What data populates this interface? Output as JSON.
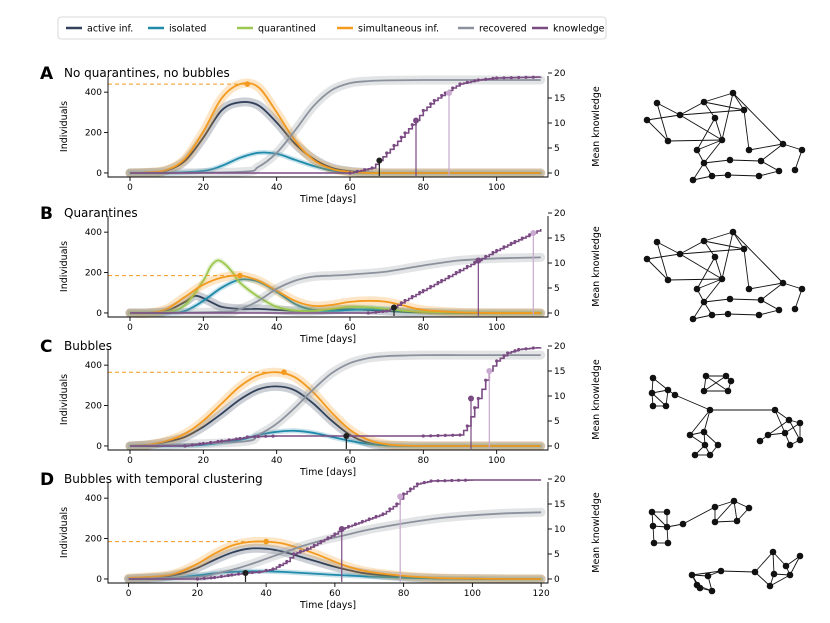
{
  "legend": [
    {
      "key": "active",
      "label": "active inf.",
      "color": "#33425a"
    },
    {
      "key": "isolated",
      "label": "isolated",
      "color": "#1f8aaa"
    },
    {
      "key": "quarantined",
      "label": "quarantined",
      "color": "#9cc751"
    },
    {
      "key": "simultaneous",
      "label": "simultaneous inf.",
      "color": "#f39a1f"
    },
    {
      "key": "recovered",
      "label": "recovered",
      "color": "#8c929d"
    },
    {
      "key": "knowledge",
      "label": "knowledge",
      "color": "#7a4a82"
    }
  ],
  "chart_data": [
    {
      "panel": "A",
      "type": "line",
      "title": "No quarantines, no bubbles",
      "xlabel": "Time [days]",
      "ylabel": "Individuals",
      "y2label": "Mean knowledge",
      "xlim": [
        -6,
        114
      ],
      "ylim": [
        -20,
        480
      ],
      "y2lim": [
        -0.8,
        19.4
      ],
      "xticks": [
        0,
        20,
        40,
        60,
        80,
        100
      ],
      "yticks": [
        0,
        200,
        400
      ],
      "y2ticks": [
        0,
        5,
        10,
        15,
        20
      ],
      "peak": {
        "x": 32,
        "y": 440
      },
      "series": [
        {
          "key": "active",
          "x": [
            0,
            5,
            10,
            15,
            20,
            25,
            30,
            35,
            40,
            45,
            50,
            55,
            60,
            65,
            70,
            80,
            90,
            100,
            112
          ],
          "y": [
            0,
            2,
            12,
            60,
            175,
            310,
            350,
            335,
            250,
            145,
            70,
            25,
            8,
            2,
            0,
            0,
            0,
            0,
            0
          ]
        },
        {
          "key": "isolated",
          "x": [
            0,
            10,
            20,
            25,
            30,
            35,
            40,
            45,
            50,
            55,
            60,
            65,
            70,
            80,
            100,
            112
          ],
          "y": [
            0,
            0,
            10,
            35,
            75,
            100,
            95,
            65,
            35,
            12,
            3,
            0,
            0,
            0,
            0,
            0
          ]
        },
        {
          "key": "simultaneous",
          "x": [
            0,
            5,
            10,
            15,
            20,
            25,
            30,
            35,
            40,
            45,
            50,
            55,
            60,
            65,
            70,
            80,
            112
          ],
          "y": [
            0,
            3,
            15,
            70,
            205,
            370,
            440,
            425,
            300,
            160,
            65,
            20,
            5,
            0,
            0,
            0,
            0
          ]
        },
        {
          "key": "recovered",
          "x": [
            0,
            30,
            35,
            40,
            45,
            50,
            55,
            60,
            65,
            70,
            80,
            90,
            100,
            112
          ],
          "y": [
            0,
            5,
            30,
            100,
            210,
            330,
            410,
            445,
            455,
            458,
            460,
            460,
            460,
            460
          ]
        },
        {
          "key": "knowledge",
          "x": [
            0,
            60,
            66,
            68,
            70,
            72,
            75,
            78,
            80,
            83,
            86,
            88,
            90,
            95,
            100,
            112
          ],
          "y": [
            0,
            0,
            1,
            2.5,
            4,
            5.5,
            8,
            10.5,
            12.5,
            14.5,
            16,
            17,
            17.8,
            18.6,
            19,
            19.2
          ]
        }
      ],
      "markers": [
        {
          "x": 68,
          "k": 2.5
        },
        {
          "x": 78,
          "k": 10.5
        },
        {
          "x": 87,
          "k": 16
        }
      ]
    },
    {
      "panel": "B",
      "type": "line",
      "title": "Quarantines",
      "xlabel": "Time [days]",
      "ylabel": "Individuals",
      "y2label": "Mean knowledge",
      "xlim": [
        -6,
        114
      ],
      "ylim": [
        -20,
        480
      ],
      "y2lim": [
        -0.8,
        19.4
      ],
      "xticks": [
        0,
        20,
        40,
        60,
        80,
        100
      ],
      "yticks": [
        0,
        200,
        400
      ],
      "y2ticks": [
        0,
        5,
        10,
        15,
        20
      ],
      "peak": {
        "x": 30,
        "y": 185
      },
      "series": [
        {
          "key": "active",
          "x": [
            0,
            5,
            10,
            15,
            18,
            22,
            25,
            30,
            35,
            40,
            45,
            50,
            55,
            60,
            65,
            70,
            75,
            80,
            90,
            100,
            112
          ],
          "y": [
            0,
            0,
            10,
            55,
            85,
            55,
            30,
            20,
            20,
            15,
            10,
            10,
            15,
            18,
            15,
            10,
            5,
            3,
            0,
            0,
            0
          ]
        },
        {
          "key": "isolated",
          "x": [
            0,
            10,
            15,
            20,
            25,
            30,
            35,
            40,
            45,
            50,
            55,
            60,
            65,
            70,
            75,
            80,
            90,
            100,
            112
          ],
          "y": [
            0,
            0,
            10,
            60,
            125,
            165,
            155,
            105,
            45,
            15,
            10,
            15,
            18,
            15,
            10,
            5,
            1,
            0,
            0
          ]
        },
        {
          "key": "quarantined",
          "x": [
            0,
            10,
            15,
            20,
            22,
            24,
            26,
            28,
            30,
            35,
            40,
            45,
            50,
            55,
            60,
            65,
            70,
            75,
            80,
            90,
            100,
            112
          ],
          "y": [
            0,
            5,
            40,
            160,
            230,
            260,
            240,
            200,
            150,
            80,
            30,
            12,
            10,
            20,
            30,
            28,
            20,
            10,
            5,
            2,
            0,
            0
          ]
        },
        {
          "key": "simultaneous",
          "x": [
            0,
            5,
            10,
            15,
            20,
            25,
            30,
            35,
            40,
            45,
            50,
            55,
            60,
            65,
            70,
            75,
            80,
            90,
            100,
            112
          ],
          "y": [
            0,
            0,
            20,
            80,
            140,
            175,
            185,
            160,
            110,
            60,
            35,
            40,
            55,
            60,
            55,
            35,
            15,
            3,
            0,
            0
          ]
        },
        {
          "key": "recovered",
          "x": [
            0,
            25,
            30,
            35,
            40,
            45,
            50,
            55,
            60,
            70,
            80,
            90,
            100,
            112
          ],
          "y": [
            0,
            5,
            20,
            60,
            120,
            160,
            180,
            185,
            190,
            205,
            235,
            260,
            270,
            275
          ]
        },
        {
          "key": "knowledge",
          "x": [
            0,
            65,
            70,
            72,
            75,
            80,
            85,
            90,
            95,
            100,
            105,
            110,
            112
          ],
          "y": [
            0,
            0,
            0.4,
            1.1,
            2.5,
            4.5,
            6.5,
            8.5,
            10.5,
            12.5,
            14.3,
            16,
            16.8
          ]
        }
      ],
      "markers": [
        {
          "x": 72,
          "k": 1.1
        },
        {
          "x": 95,
          "k": 10.5
        },
        {
          "x": 110,
          "k": 16
        }
      ]
    },
    {
      "panel": "C",
      "type": "line",
      "title": "Bubbles",
      "xlabel": "Time [days]",
      "ylabel": "Individuals",
      "y2label": "Mean knowledge",
      "xlim": [
        -6,
        114
      ],
      "ylim": [
        -20,
        480
      ],
      "y2lim": [
        -0.8,
        19.4
      ],
      "xticks": [
        0,
        20,
        40,
        60,
        80,
        100
      ],
      "yticks": [
        0,
        200,
        400
      ],
      "y2ticks": [
        0,
        5,
        10,
        15,
        20
      ],
      "peak": {
        "x": 42,
        "y": 365
      },
      "series": [
        {
          "key": "active",
          "x": [
            0,
            5,
            10,
            15,
            20,
            25,
            30,
            35,
            40,
            45,
            50,
            55,
            60,
            65,
            70,
            80,
            90,
            112
          ],
          "y": [
            0,
            5,
            20,
            45,
            95,
            160,
            230,
            280,
            295,
            275,
            210,
            125,
            55,
            15,
            3,
            0,
            0,
            0
          ]
        },
        {
          "key": "isolated",
          "x": [
            0,
            10,
            20,
            30,
            35,
            40,
            45,
            50,
            55,
            60,
            65,
            70,
            80,
            112
          ],
          "y": [
            0,
            0,
            5,
            30,
            55,
            70,
            75,
            65,
            45,
            25,
            10,
            3,
            0,
            0
          ]
        },
        {
          "key": "simultaneous",
          "x": [
            0,
            5,
            10,
            15,
            20,
            25,
            30,
            35,
            40,
            45,
            50,
            55,
            60,
            65,
            70,
            75,
            80,
            90,
            112
          ],
          "y": [
            0,
            6,
            25,
            60,
            125,
            210,
            295,
            350,
            365,
            340,
            265,
            165,
            80,
            30,
            8,
            2,
            0,
            0,
            0
          ]
        },
        {
          "key": "recovered",
          "x": [
            0,
            30,
            35,
            40,
            45,
            50,
            55,
            60,
            65,
            70,
            75,
            80,
            90,
            100,
            112
          ],
          "y": [
            0,
            20,
            55,
            110,
            190,
            280,
            360,
            410,
            435,
            445,
            448,
            450,
            450,
            450,
            450
          ]
        },
        {
          "key": "knowledge",
          "x": [
            0,
            10,
            15,
            20,
            25,
            30,
            32,
            35,
            40,
            45,
            50,
            55,
            60,
            70,
            80,
            90,
            92,
            95,
            98,
            100,
            103,
            106,
            110,
            112
          ],
          "y": [
            0,
            0,
            0,
            0.5,
            1,
            1.5,
            1.8,
            1.9,
            2,
            2,
            2,
            2,
            2,
            2,
            2,
            2.2,
            4,
            9.5,
            15,
            17,
            18.6,
            19.3,
            19.6,
            19.7
          ]
        }
      ],
      "markers": [
        {
          "x": 59,
          "k": 2
        },
        {
          "x": 93,
          "k": 9.5
        },
        {
          "x": 98,
          "k": 15
        }
      ]
    },
    {
      "panel": "D",
      "type": "line",
      "title": "Bubbles with temporal clustering",
      "xlabel": "Time [days]",
      "ylabel": "Individuals",
      "y2label": "Mean knowledge",
      "xlim": [
        -6,
        122
      ],
      "ylim": [
        -20,
        480
      ],
      "y2lim": [
        -0.8,
        19.4
      ],
      "xticks": [
        0,
        20,
        40,
        60,
        80,
        100,
        120
      ],
      "yticks": [
        0,
        200,
        400
      ],
      "y2ticks": [
        0,
        5,
        10,
        15,
        20
      ],
      "peak": {
        "x": 40,
        "y": 185
      },
      "series": [
        {
          "key": "active",
          "x": [
            0,
            10,
            15,
            20,
            25,
            30,
            35,
            40,
            45,
            50,
            55,
            60,
            65,
            70,
            80,
            90,
            100,
            110,
            120
          ],
          "y": [
            0,
            10,
            25,
            55,
            95,
            130,
            150,
            150,
            135,
            110,
            85,
            60,
            40,
            25,
            10,
            3,
            1,
            0,
            0
          ]
        },
        {
          "key": "isolated",
          "x": [
            0,
            10,
            15,
            20,
            25,
            30,
            35,
            40,
            45,
            50,
            55,
            60,
            70,
            80,
            90,
            100,
            110,
            120
          ],
          "y": [
            0,
            2,
            8,
            18,
            28,
            35,
            38,
            38,
            35,
            30,
            25,
            20,
            12,
            6,
            3,
            1,
            0,
            0
          ]
        },
        {
          "key": "simultaneous",
          "x": [
            0,
            10,
            15,
            20,
            25,
            30,
            35,
            40,
            45,
            50,
            55,
            60,
            65,
            70,
            80,
            90,
            100,
            110,
            120
          ],
          "y": [
            5,
            15,
            35,
            75,
            125,
            165,
            183,
            185,
            175,
            150,
            120,
            85,
            55,
            35,
            15,
            5,
            2,
            0,
            0
          ]
        },
        {
          "key": "recovered",
          "x": [
            0,
            20,
            25,
            30,
            35,
            40,
            45,
            50,
            55,
            60,
            65,
            70,
            80,
            90,
            100,
            110,
            120
          ],
          "y": [
            0,
            10,
            25,
            45,
            70,
            100,
            130,
            160,
            185,
            205,
            225,
            245,
            275,
            300,
            315,
            325,
            330
          ]
        },
        {
          "key": "knowledge",
          "x": [
            0,
            20,
            25,
            30,
            34,
            38,
            42,
            46,
            48,
            52,
            56,
            60,
            62,
            64,
            66,
            70,
            74,
            78,
            80,
            84,
            88,
            100,
            120
          ],
          "y": [
            0,
            0,
            0.3,
            0.8,
            1.2,
            1.4,
            2,
            3.5,
            5,
            6,
            7.5,
            9,
            10,
            10.5,
            11,
            12,
            13,
            15,
            17,
            19,
            19.6,
            19.8,
            19.8
          ]
        }
      ],
      "markers": [
        {
          "x": 34,
          "k": 1.2
        },
        {
          "x": 62,
          "k": 10
        },
        {
          "x": 79,
          "k": 16.5
        }
      ]
    }
  ]
}
